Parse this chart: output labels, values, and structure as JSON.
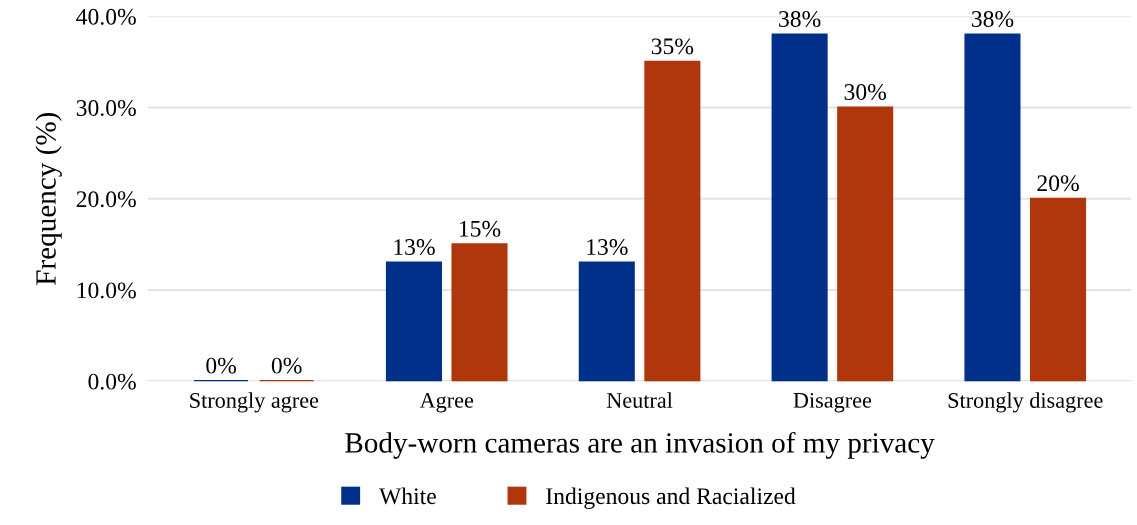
{
  "chart_data": {
    "type": "bar",
    "xlabel": "Body-worn cameras are an invasion of my privacy",
    "ylabel": "Frequency (%)",
    "categories": [
      "Strongly agree",
      "Agree",
      "Neutral",
      "Disagree",
      "Strongly disagree"
    ],
    "series": [
      {
        "name": "White",
        "color": "#00308a",
        "values": [
          0,
          13,
          13,
          38,
          38
        ],
        "value_labels": [
          "0%",
          "13%",
          "13%",
          "38%",
          "38%"
        ]
      },
      {
        "name": "Indigenous and Racialized",
        "color": "#b0360b",
        "values": [
          0,
          15,
          35,
          30,
          20
        ],
        "value_labels": [
          "0%",
          "15%",
          "35%",
          "30%",
          "20%"
        ]
      }
    ],
    "ylim": [
      0,
      40
    ],
    "yticks": [
      {
        "value": 0,
        "label": "0.0%"
      },
      {
        "value": 10,
        "label": "10.0%"
      },
      {
        "value": 20,
        "label": "20.0%"
      },
      {
        "value": 30,
        "label": "30.0%"
      },
      {
        "value": 40,
        "label": "40.0%"
      }
    ],
    "grid": "y",
    "legend": "bottom"
  }
}
